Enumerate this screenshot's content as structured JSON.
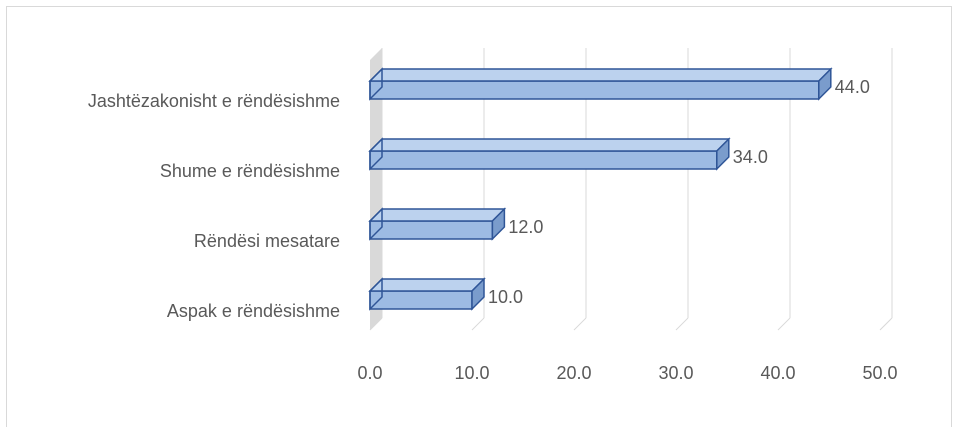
{
  "chart_data": {
    "type": "bar",
    "orientation": "horizontal",
    "style": "3d-clustered",
    "title": "",
    "xlabel": "",
    "ylabel": "",
    "categories": [
      "Jashtëzakonisht e rëndësishme",
      "Shume e rëndësishme",
      "Rëndësi mesatare",
      "Aspak e rëndësishme"
    ],
    "values": [
      44.0,
      34.0,
      12.0,
      10.0
    ],
    "value_labels": [
      "44.0",
      "34.0",
      "12.0",
      "10.0"
    ],
    "xlim": [
      0,
      50
    ],
    "ticks": [
      "0.0",
      "10.0",
      "20.0",
      "30.0",
      "40.0",
      "50.0"
    ],
    "grid": true,
    "legend": "none",
    "colors": {
      "bar_front": "#9dbbe3",
      "bar_top": "#bcd2ee",
      "bar_side": "#7a9ccc",
      "bar_edge": "#2f5597",
      "grid": "#d9d9d9",
      "wall": "#d9d9d9",
      "text": "#595959"
    }
  }
}
